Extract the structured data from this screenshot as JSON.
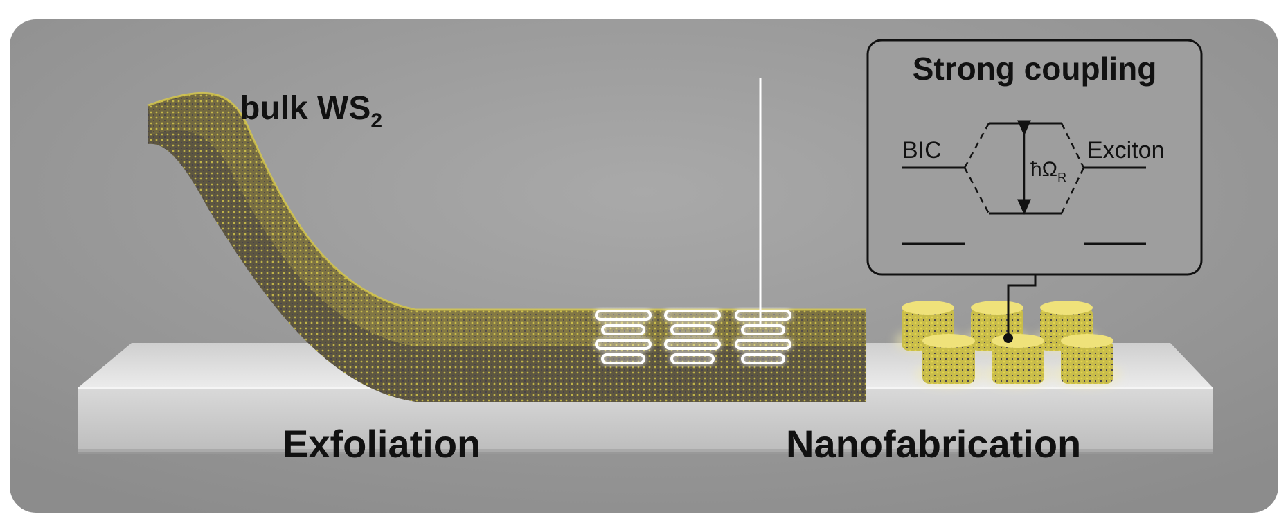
{
  "labels": {
    "bulk_prefix": "bulk WS",
    "bulk_subscript": "2",
    "exfoliation": "Exfoliation",
    "nanofabrication": "Nanofabrication"
  },
  "inset": {
    "title": "Strong coupling",
    "left_state": "BIC",
    "right_state": "Exciton",
    "splitting_symbol": "ħΩ",
    "splitting_subscript": "R"
  },
  "colors": {
    "background": "#9a9a9a",
    "slab_top": "#dcdcdc",
    "flake": "#8a7d3a",
    "flake_highlight": "#d8c948",
    "pillar": "#e8dc55",
    "glow": "#ffffff"
  }
}
